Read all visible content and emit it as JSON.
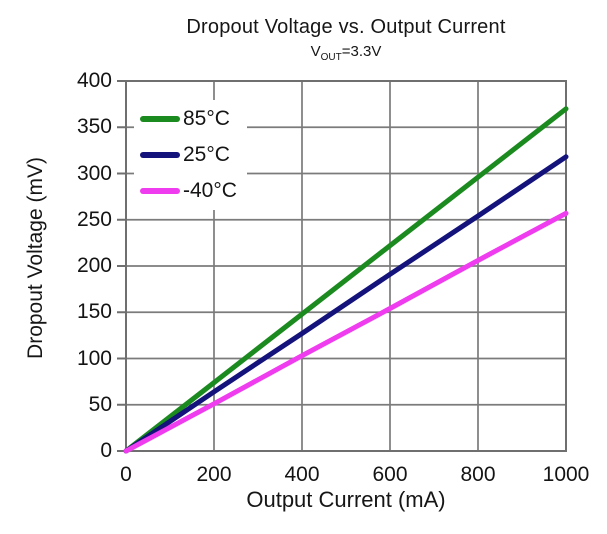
{
  "chart_data": {
    "type": "line",
    "title": "Dropout Voltage vs. Output Current",
    "subtitle": {
      "prefix": "V",
      "sub": "OUT",
      "suffix": "=3.3V"
    },
    "xlabel": "Output Current (mA)",
    "ylabel": "Dropout Voltage (mV)",
    "xlim": [
      0,
      1000
    ],
    "ylim": [
      0,
      400
    ],
    "x_ticks": [
      0,
      200,
      400,
      600,
      800,
      1000
    ],
    "y_ticks": [
      0,
      50,
      100,
      150,
      200,
      250,
      300,
      350,
      400
    ],
    "grid": true,
    "legend_position": "top-left",
    "x": [
      0,
      200,
      400,
      600,
      800,
      1000
    ],
    "series": [
      {
        "name": "85°C",
        "color": "#1b8a1f",
        "values": [
          0,
          74,
          148,
          222,
          296,
          370
        ]
      },
      {
        "name": "25°C",
        "color": "#13137b",
        "values": [
          0,
          64,
          127,
          191,
          254,
          318
        ]
      },
      {
        "name": "-40°C",
        "color": "#ef3cef",
        "values": [
          0,
          51,
          103,
          154,
          206,
          257
        ]
      }
    ],
    "colors": {
      "grid": "#7b7b7b",
      "border": "#6f6f6f",
      "text": "#141414",
      "background": "#ffffff"
    }
  }
}
